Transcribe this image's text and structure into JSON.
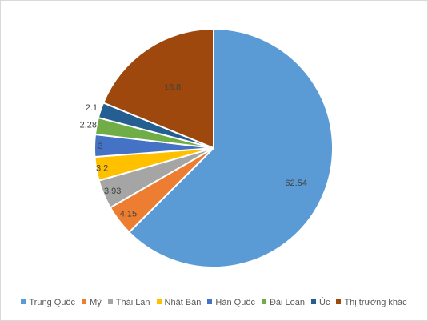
{
  "chart_data": {
    "type": "pie",
    "title": "",
    "categories": [
      "Trung Quốc",
      "Mỹ",
      "Thái Lan",
      "Nhật Bản",
      "Hàn Quốc",
      "Đài Loan",
      "Úc",
      "Thị trường khác"
    ],
    "values": [
      62.54,
      4.15,
      3.93,
      3.2,
      3,
      2.28,
      2.1,
      18.8
    ],
    "data_labels": [
      "62.54",
      "4.15",
      "3.93",
      "3.2",
      "3",
      "2.28",
      "2.1",
      "18.8"
    ],
    "colors": [
      "#5b9bd5",
      "#ed7d31",
      "#a5a5a5",
      "#ffc000",
      "#4472c4",
      "#70ad47",
      "#255e91",
      "#9e480e"
    ],
    "start_angle": "12 o'clock, clockwise",
    "legend_position": "bottom"
  }
}
